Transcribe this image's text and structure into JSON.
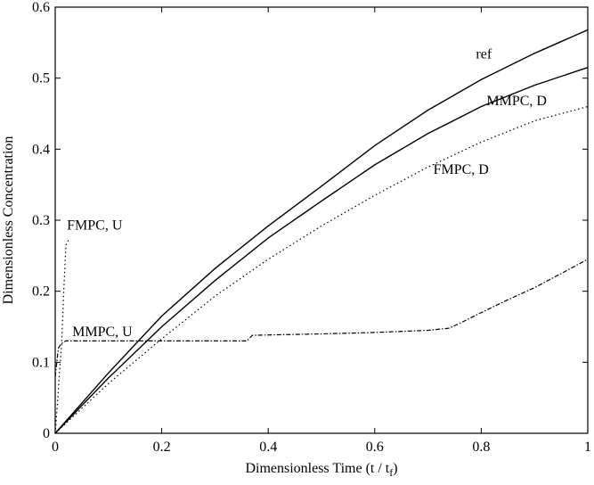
{
  "chart_data": {
    "type": "line",
    "title": "",
    "xlabel": "Dimensionless Time (t / t",
    "xlabel_sub": "f",
    "xlabel_tail": ")",
    "ylabel": "Dimensionless Concentration",
    "xlim": [
      0,
      1
    ],
    "ylim": [
      0,
      0.6
    ],
    "xticks": [
      0,
      0.2,
      0.4,
      0.6,
      0.8,
      1
    ],
    "xtick_labels": [
      "0",
      "0.2",
      "0.4",
      "0.6",
      "0.8",
      "1"
    ],
    "yticks": [
      0,
      0.1,
      0.2,
      0.3,
      0.4,
      0.5,
      0.6
    ],
    "ytick_labels": [
      "0",
      "0.1",
      "0.2",
      "0.3",
      "0.4",
      "0.5",
      "0.6"
    ],
    "grid": false,
    "legend": "none",
    "series": [
      {
        "key": "ref",
        "style": "solid",
        "x": [
          0,
          0.1,
          0.2,
          0.3,
          0.4,
          0.5,
          0.6,
          0.7,
          0.8,
          0.9,
          1.0
        ],
        "y": [
          0,
          0.085,
          0.165,
          0.232,
          0.292,
          0.348,
          0.405,
          0.455,
          0.498,
          0.535,
          0.568
        ]
      },
      {
        "key": "mmpc_d",
        "style": "solid",
        "x": [
          0,
          0.1,
          0.2,
          0.3,
          0.4,
          0.5,
          0.6,
          0.7,
          0.8,
          0.9,
          1.0
        ],
        "y": [
          0,
          0.078,
          0.15,
          0.215,
          0.275,
          0.327,
          0.378,
          0.422,
          0.46,
          0.49,
          0.515
        ]
      },
      {
        "key": "fmpc_d",
        "style": "dotted",
        "x": [
          0,
          0.1,
          0.2,
          0.3,
          0.4,
          0.5,
          0.6,
          0.7,
          0.8,
          0.9,
          1.0
        ],
        "y": [
          0,
          0.07,
          0.133,
          0.193,
          0.245,
          0.292,
          0.335,
          0.375,
          0.41,
          0.44,
          0.46
        ]
      },
      {
        "key": "mmpc_u",
        "style": "dashdot",
        "x": [
          0,
          0.003,
          0.006,
          0.01,
          0.015,
          0.02,
          0.1,
          0.2,
          0.3,
          0.36,
          0.37,
          0.5,
          0.6,
          0.7,
          0.74,
          0.76,
          0.8,
          0.85,
          0.9,
          0.95,
          1.0
        ],
        "y": [
          0.08,
          0.1,
          0.12,
          0.125,
          0.128,
          0.13,
          0.13,
          0.13,
          0.13,
          0.13,
          0.138,
          0.14,
          0.142,
          0.145,
          0.148,
          0.155,
          0.17,
          0.188,
          0.205,
          0.225,
          0.245
        ]
      },
      {
        "key": "fmpc_u",
        "style": "dotted",
        "x": [
          0,
          0.004,
          0.008,
          0.012,
          0.016,
          0.02,
          0.025
        ],
        "y": [
          0,
          0.04,
          0.085,
          0.125,
          0.2,
          0.265,
          0.272
        ]
      }
    ],
    "annotations": [
      {
        "key": "ref",
        "text": "ref",
        "x": 0.79,
        "y": 0.528
      },
      {
        "key": "mmpc_d",
        "text": "MMPC, D",
        "x": 0.81,
        "y": 0.462
      },
      {
        "key": "fmpc_d",
        "text": "FMPC, D",
        "x": 0.71,
        "y": 0.365
      },
      {
        "key": "fmpc_u",
        "text": "FMPC, U",
        "x": 0.022,
        "y": 0.287
      },
      {
        "key": "mmpc_u",
        "text": "MMPC, U",
        "x": 0.032,
        "y": 0.137
      }
    ]
  }
}
